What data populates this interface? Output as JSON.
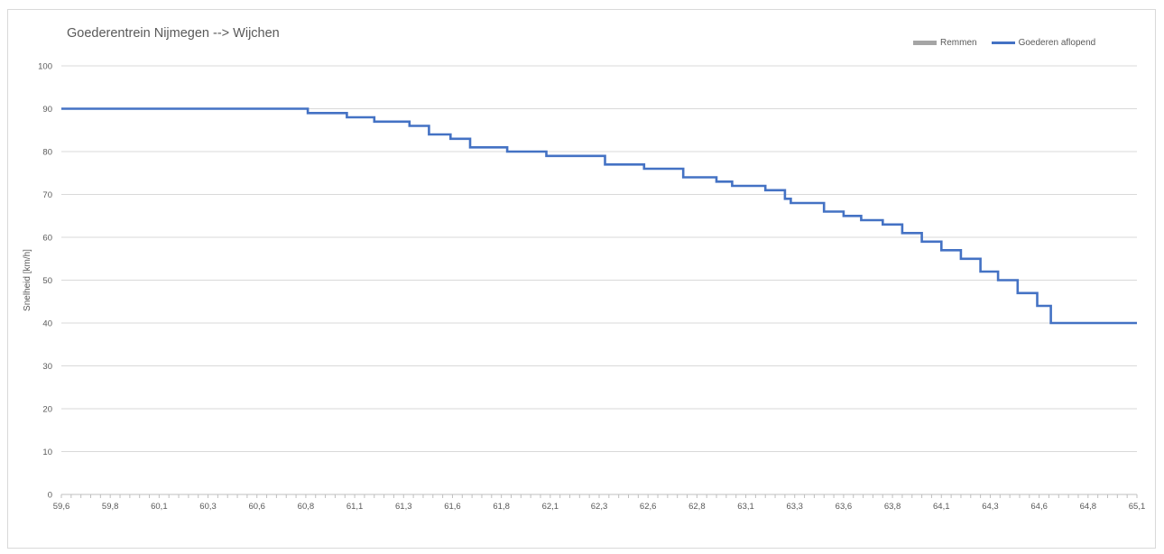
{
  "chart_data": {
    "type": "line",
    "title": "Goederentrein Nijmegen --> Wijchen",
    "xlabel": "",
    "ylabel": "Snelheid [km/h]",
    "ylim": [
      0,
      100
    ],
    "xlim": [
      59.6,
      65.1
    ],
    "grid": "horizontal",
    "legend_position": "top-right",
    "y_ticks": [
      "0",
      "10",
      "20",
      "30",
      "40",
      "50",
      "60",
      "70",
      "80",
      "90",
      "100"
    ],
    "x_tick_labels": [
      "59,6",
      "59,8",
      "60,1",
      "60,3",
      "60,6",
      "60,8",
      "61,1",
      "61,3",
      "61,6",
      "61,8",
      "62,1",
      "62,3",
      "62,6",
      "62,8",
      "63,1",
      "63,3",
      "63,6",
      "63,8",
      "64,1",
      "64,3",
      "64,6",
      "64,8",
      "65,1"
    ],
    "series": [
      {
        "name": "Remmen",
        "color": "#a5a5a5",
        "values": []
      },
      {
        "name": "Goederen aflopend",
        "color": "#4472c4",
        "step": true,
        "points": [
          [
            59.6,
            90
          ],
          [
            60.86,
            90
          ],
          [
            60.86,
            89
          ],
          [
            61.06,
            89
          ],
          [
            61.06,
            88
          ],
          [
            61.2,
            88
          ],
          [
            61.2,
            87
          ],
          [
            61.38,
            87
          ],
          [
            61.38,
            86
          ],
          [
            61.48,
            86
          ],
          [
            61.48,
            84
          ],
          [
            61.59,
            84
          ],
          [
            61.59,
            83
          ],
          [
            61.69,
            83
          ],
          [
            61.69,
            81
          ],
          [
            61.88,
            81
          ],
          [
            61.88,
            80
          ],
          [
            62.08,
            80
          ],
          [
            62.08,
            79
          ],
          [
            62.38,
            79
          ],
          [
            62.38,
            77
          ],
          [
            62.58,
            77
          ],
          [
            62.58,
            76
          ],
          [
            62.78,
            76
          ],
          [
            62.78,
            74
          ],
          [
            62.95,
            74
          ],
          [
            62.95,
            73
          ],
          [
            63.03,
            73
          ],
          [
            63.03,
            72
          ],
          [
            63.2,
            72
          ],
          [
            63.2,
            71
          ],
          [
            63.3,
            71
          ],
          [
            63.3,
            69
          ],
          [
            63.33,
            69
          ],
          [
            63.33,
            68
          ],
          [
            63.5,
            68
          ],
          [
            63.5,
            66
          ],
          [
            63.6,
            66
          ],
          [
            63.6,
            65
          ],
          [
            63.69,
            65
          ],
          [
            63.69,
            64
          ],
          [
            63.8,
            64
          ],
          [
            63.8,
            63
          ],
          [
            63.9,
            63
          ],
          [
            63.9,
            61
          ],
          [
            64.0,
            61
          ],
          [
            64.0,
            59
          ],
          [
            64.1,
            59
          ],
          [
            64.1,
            57
          ],
          [
            64.2,
            57
          ],
          [
            64.2,
            55
          ],
          [
            64.3,
            55
          ],
          [
            64.3,
            52
          ],
          [
            64.39,
            52
          ],
          [
            64.39,
            50
          ],
          [
            64.49,
            50
          ],
          [
            64.49,
            47
          ],
          [
            64.59,
            47
          ],
          [
            64.59,
            44
          ],
          [
            64.66,
            44
          ],
          [
            64.66,
            40
          ],
          [
            65.1,
            40
          ]
        ]
      }
    ]
  }
}
